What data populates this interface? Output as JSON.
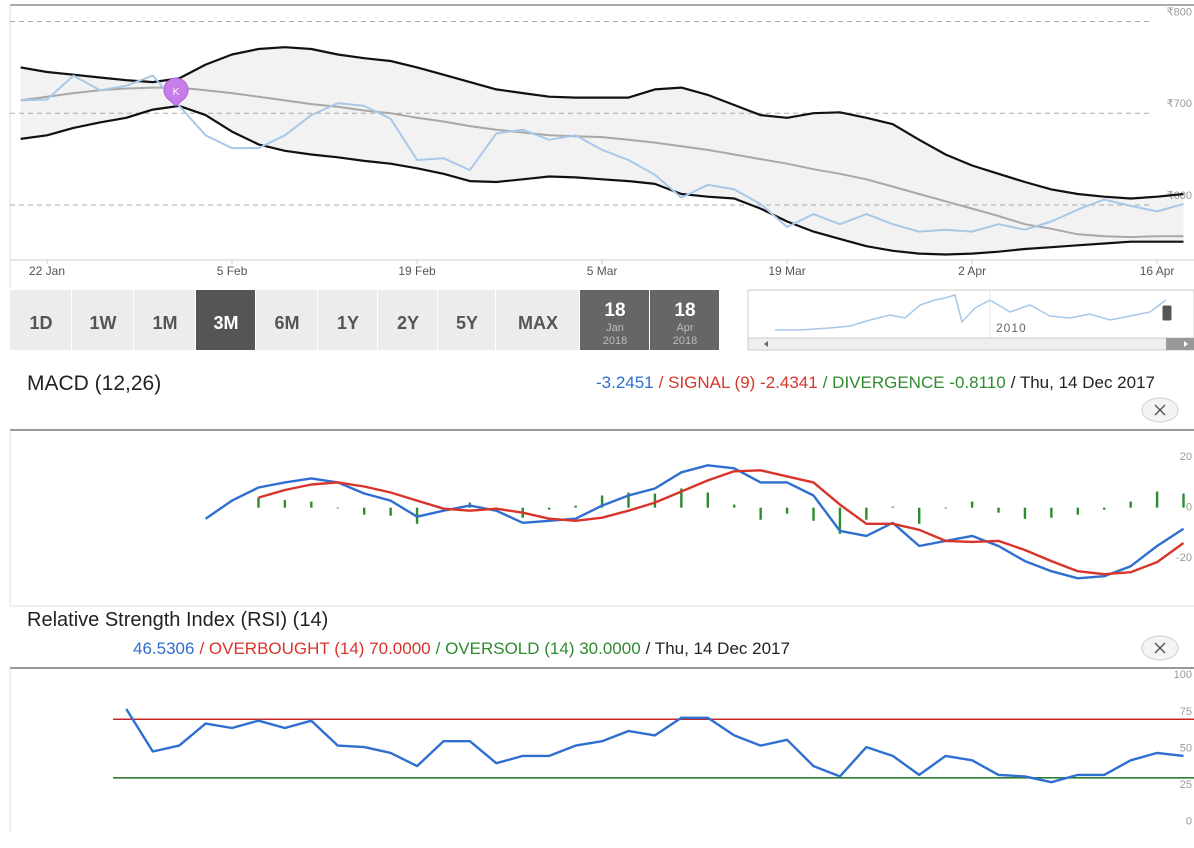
{
  "price_chart": {
    "type": "line",
    "categories": [
      null,
      "22 Jan",
      null,
      null,
      null,
      null,
      null,
      null,
      "5 Feb",
      null,
      null,
      null,
      null,
      null,
      null,
      "19 Feb",
      null,
      null,
      null,
      null,
      null,
      null,
      "5 Mar",
      null,
      null,
      null,
      null,
      null,
      null,
      "19 Mar",
      null,
      null,
      null,
      null,
      null,
      null,
      "2 Apr",
      null,
      null,
      null,
      null,
      null,
      null,
      "16 Apr",
      null
    ],
    "ylim": [
      540,
      818
    ],
    "yticks": [
      {
        "value": 800,
        "label": "₹800"
      },
      {
        "value": 700,
        "label": "₹700"
      },
      {
        "value": 600,
        "label": "₹600"
      }
    ],
    "grid": true,
    "band_fill": "#f2f2f2",
    "marker_label": "K",
    "series": [
      {
        "color": "#111111",
        "width": 2.2,
        "values": [
          750,
          745,
          742,
          739,
          736,
          734,
          738,
          753,
          764,
          770,
          772,
          770,
          764,
          760,
          757,
          750,
          742,
          734,
          726,
          722,
          718,
          717,
          717,
          717,
          726,
          728,
          720,
          709,
          698,
          695,
          700,
          701,
          695,
          688,
          671,
          655,
          643,
          634,
          625,
          617,
          612,
          609,
          607,
          609,
          612
        ]
      },
      {
        "color": "#111111",
        "width": 2.2,
        "values": [
          672,
          676,
          684,
          690,
          695,
          704,
          708,
          698,
          680,
          666,
          659,
          655,
          652,
          648,
          645,
          640,
          634,
          626,
          625,
          628,
          631,
          630,
          628,
          626,
          623,
          612,
          609,
          607,
          596,
          582,
          571,
          563,
          555,
          550,
          547,
          546,
          547,
          549,
          552,
          554,
          556,
          558,
          560,
          560,
          560
        ]
      },
      {
        "color": "#a8a8a8",
        "width": 2,
        "values": [
          714,
          718,
          722,
          725,
          727,
          728,
          728,
          725,
          722,
          718,
          714,
          710,
          707,
          703,
          700,
          695,
          691,
          686,
          682,
          679,
          676,
          675,
          674,
          671,
          668,
          664,
          660,
          655,
          650,
          645,
          639,
          634,
          628,
          620,
          612,
          604,
          596,
          588,
          579,
          574,
          568,
          566,
          565,
          566,
          566
        ]
      },
      {
        "color": "#a9c8e8",
        "width": 2,
        "values": [
          714,
          715,
          741,
          725,
          730,
          741,
          708,
          676,
          662,
          662,
          676,
          698,
          711,
          708,
          694,
          649,
          651,
          638,
          678,
          682,
          671,
          676,
          660,
          649,
          633,
          608,
          622,
          617,
          601,
          576,
          590,
          579,
          590,
          579,
          571,
          573,
          571,
          579,
          573,
          582,
          595,
          606,
          599,
          593,
          601
        ]
      }
    ]
  },
  "range_selector": {
    "buttons": [
      "1D",
      "1W",
      "1M",
      "3M",
      "6M",
      "1Y",
      "2Y",
      "5Y",
      "MAX"
    ],
    "selected": "3M",
    "dates": [
      {
        "day": "18",
        "month": "Jan",
        "year": "2018"
      },
      {
        "day": "18",
        "month": "Apr",
        "year": "2018"
      }
    ],
    "navigator_label": "2010"
  },
  "macd": {
    "type": "line",
    "title": "MACD (12,26)",
    "legend": [
      {
        "text": "-3.2451",
        "color": "#2f6fcf"
      },
      {
        "text": "/ SIGNAL (9) -2.4341",
        "color": "#d9342b"
      },
      {
        "text": "/ DIVERGENCE -0.8110",
        "color": "#2e8b2e"
      },
      {
        "text": "/ Thu, 14 Dec 2017",
        "color": "#222222"
      }
    ],
    "ylim": [
      -39,
      30
    ],
    "yticks": [
      20,
      0,
      -20
    ],
    "histogram": {
      "color": "#2e8b2e",
      "values": [
        null,
        null,
        null,
        null,
        null,
        null,
        null,
        null,
        null,
        4,
        3,
        2.4,
        0,
        -2.8,
        -3.2,
        -6.4,
        -0.8,
        2,
        -0.8,
        -4,
        -0.8,
        0.8,
        4.8,
        6,
        5.6,
        7.6,
        6,
        1.2,
        -4.8,
        -2.4,
        -5.2,
        -10.4,
        -4.8,
        0.4,
        -6.4,
        0,
        2.4,
        -2,
        -4.4,
        -4,
        -2.8,
        -0.8,
        2.4,
        6.4,
        5.6
      ]
    },
    "series": [
      {
        "color": "#2f6fcf",
        "width": 2.4,
        "values": [
          null,
          null,
          null,
          null,
          null,
          null,
          null,
          -4.4,
          2.8,
          8,
          10,
          11.6,
          10,
          5.6,
          2.8,
          -3.6,
          -1.2,
          0.8,
          -1.2,
          -6,
          -5.2,
          -4.4,
          0.8,
          4.8,
          7.6,
          14,
          16.8,
          15.6,
          10,
          10,
          4.8,
          -9.2,
          -11.2,
          -6,
          -15.2,
          -13.2,
          -11.2,
          -15.2,
          -21.2,
          -25.2,
          -28,
          -27.2,
          -23.2,
          -15.2,
          -8.4
        ]
      },
      {
        "color": "#d9342b",
        "width": 2.4,
        "values": [
          null,
          null,
          null,
          null,
          null,
          null,
          null,
          null,
          null,
          4,
          7,
          9.2,
          10,
          8.4,
          6,
          2.8,
          -0.4,
          -1.2,
          -0.4,
          -2,
          -4.4,
          -5.2,
          -4,
          -1.2,
          2,
          6.4,
          10.8,
          14.4,
          14.8,
          12.4,
          10,
          1.2,
          -6.4,
          -6.4,
          -8.8,
          -13.2,
          -13.6,
          -13.2,
          -16.8,
          -21.2,
          -25.2,
          -26.4,
          -25.6,
          -21.6,
          -14
        ]
      }
    ]
  },
  "rsi": {
    "type": "line",
    "title": "Relative Strength Index (RSI) (14)",
    "legend": [
      {
        "text": "46.5306",
        "color": "#2f6fcf"
      },
      {
        "text": "/ OVERBOUGHT (14) 70.0000",
        "color": "#d9342b"
      },
      {
        "text": "/ OVERSOLD (14) 30.0000",
        "color": "#2e8b2e"
      },
      {
        "text": "/ Thu, 14 Dec 2017",
        "color": "#222222"
      }
    ],
    "ylim": [
      -7,
      105
    ],
    "yticks": [
      100,
      75,
      50,
      25,
      0
    ],
    "levels": [
      {
        "value": 70,
        "color": "#c62828"
      },
      {
        "value": 30,
        "color": "#2e7d32"
      }
    ],
    "series": [
      {
        "color": "#2f6fcf",
        "width": 2.4,
        "values": [
          null,
          null,
          null,
          null,
          77,
          48,
          52,
          67,
          64,
          69,
          64,
          69,
          52,
          51,
          47,
          38,
          55,
          55,
          40,
          45,
          45,
          52,
          55,
          62,
          59,
          71,
          71,
          59,
          52,
          56,
          38,
          31,
          51,
          45,
          32,
          45,
          42,
          32,
          31,
          27,
          32,
          32,
          42,
          47,
          45
        ]
      }
    ]
  }
}
